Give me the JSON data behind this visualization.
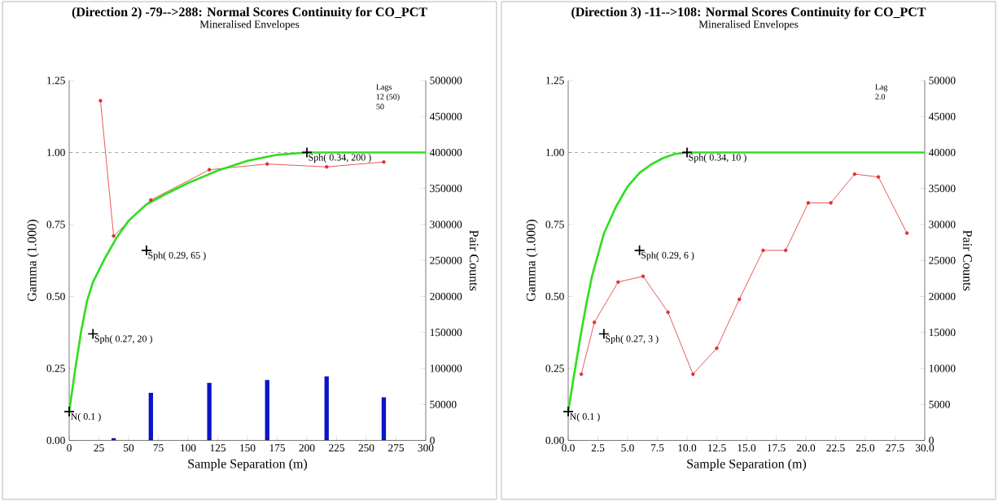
{
  "chart_data": [
    {
      "type": "line",
      "title": "(Direction 2) -79-->288:  Normal Scores Continuity for CO_PCT",
      "subtitle": "Mineralised Envelopes",
      "xlabel": "Sample Separation (m)",
      "ylabel": "Gamma (1.000)",
      "y2label": "Pair Counts",
      "xlim": [
        0,
        300
      ],
      "xticks": [
        0,
        25,
        50,
        75,
        100,
        125,
        150,
        175,
        200,
        225,
        250,
        275,
        300
      ],
      "ylim": [
        0,
        1.25
      ],
      "yticks": [
        {
          "value": 0,
          "label": "0.00"
        },
        {
          "value": 0.25,
          "label": "0.25"
        },
        {
          "value": 0.5,
          "label": "0.50"
        },
        {
          "value": 0.75,
          "label": "0.75"
        },
        {
          "value": 1,
          "label": "1.00"
        },
        1.25
      ],
      "y2lim": [
        0,
        500000
      ],
      "y2ticks": [
        0,
        50000,
        100000,
        150000,
        200000,
        250000,
        300000,
        350000,
        400000,
        450000,
        500000
      ],
      "series": [
        {
          "type": "bar",
          "axis": "y2",
          "color": "#0a14c8",
          "x": [
            37.4,
            68.7,
            117.9,
            166.6,
            216.6,
            264.7
          ],
          "values": [
            3000,
            66000,
            80000,
            84000,
            89000,
            60000
          ]
        },
        {
          "color": "#e03030",
          "marker": "circle",
          "x": [
            26.3,
            37.4,
            68.7,
            117.9,
            166.6,
            216.6,
            264.7
          ],
          "values": [
            1.18,
            0.71,
            0.835,
            0.94,
            0.96,
            0.95,
            0.967
          ]
        },
        {
          "color": "#33dd22",
          "marker": "none",
          "x": [
            0,
            5,
            10,
            15,
            20,
            30,
            40,
            50,
            65,
            80,
            100,
            125,
            150,
            175,
            200,
            300
          ],
          "values": [
            0.1,
            0.245,
            0.378,
            0.484,
            0.55,
            0.632,
            0.705,
            0.763,
            0.82,
            0.853,
            0.894,
            0.937,
            0.971,
            0.992,
            1,
            1
          ]
        }
      ],
      "ref_lines": [
        {
          "axis": "y",
          "value": 1,
          "color": "#808080",
          "line_style": "dashed"
        }
      ],
      "annotations": [
        "Lags",
        "12 (50)",
        "50",
        {
          "text": "N( 0.1 )",
          "x": 0,
          "y": 0.1
        },
        {
          "text": "Sph( 0.34, 200 )",
          "x": 200,
          "y": 1
        },
        "Sph( 0.27, 20 )",
        "Sph( 0.29, 65 )"
      ]
    },
    {
      "type": "line",
      "title": "(Direction 3) -11-->108:  Normal Scores Continuity for CO_PCT",
      "subtitle": "Mineralised Envelopes",
      "xlabel": "Sample Separation (m)",
      "ylabel": "Gamma (1.000)",
      "y2label": "Pair Counts",
      "xlim": [
        0,
        30
      ],
      "xticks": [
        {
          "value": 0,
          "label": "0.0"
        },
        2.5,
        {
          "value": 5,
          "label": "5.0"
        },
        7.5,
        {
          "value": 10,
          "label": "10.0"
        },
        12.5,
        {
          "value": 15,
          "label": "15.0"
        },
        17.5,
        {
          "value": 20,
          "label": "20.0"
        },
        22.5,
        {
          "value": 25,
          "label": "25.0"
        },
        27.5,
        {
          "value": 30,
          "label": "30.0"
        }
      ],
      "ylim": [
        0,
        1.25
      ],
      "yticks": [
        {
          "value": 0,
          "label": "0.00"
        },
        {
          "value": 0.25,
          "label": "0.25"
        },
        {
          "value": 0.5,
          "label": "0.50"
        },
        {
          "value": 0.75,
          "label": "0.75"
        },
        {
          "value": 1,
          "label": "1.00"
        },
        1.25
      ],
      "y2lim": [
        0,
        50000
      ],
      "y2ticks": [
        0,
        5000,
        10000,
        15000,
        20000,
        25000,
        30000,
        35000,
        40000,
        45000,
        50000
      ],
      "series": [
        {
          "color": "#e03030",
          "marker": "circle",
          "x": [
            1.1,
            2.2,
            4.2,
            6.3,
            8.4,
            10.5,
            12.5,
            14.4,
            16.4,
            18.3,
            20.2,
            22.1,
            24.1,
            26.1,
            28.5
          ],
          "values": [
            0.23,
            0.41,
            0.55,
            0.57,
            0.445,
            0.23,
            0.32,
            0.49,
            0.66,
            0.66,
            0.825,
            0.825,
            0.925,
            0.915,
            0.72
          ]
        },
        {
          "color": "#33dd22",
          "marker": "none",
          "x": [
            0,
            0.5,
            1,
            1.5,
            2,
            3,
            4,
            5,
            6,
            7,
            8,
            9,
            10,
            30
          ],
          "values": [
            0.1,
            0.229,
            0.353,
            0.468,
            0.57,
            0.718,
            0.81,
            0.882,
            0.929,
            0.959,
            0.981,
            0.995,
            1,
            1
          ]
        }
      ],
      "ref_lines": [
        {
          "axis": "y",
          "value": 1,
          "color": "#808080",
          "line_style": "dashed"
        }
      ],
      "annotations": [
        "Lag",
        "2.0",
        {
          "text": "N( 0.1 )",
          "x": 0,
          "y": 0.1
        },
        {
          "text": "Sph( 0.34, 10 )",
          "x": 10,
          "y": 1
        },
        "Sph( 0.27, 3 )",
        "Sph( 0.29, 6 )"
      ]
    }
  ]
}
